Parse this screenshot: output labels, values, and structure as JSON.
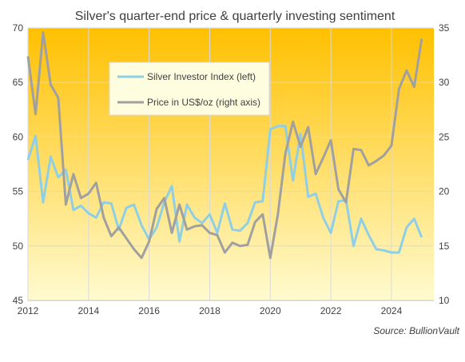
{
  "chart_data": {
    "type": "line",
    "title": "Silver's quarter-end price & quarterly  investing sentiment",
    "source": "Source:  BullionVault",
    "x_range": [
      2012,
      2025.4
    ],
    "x_ticks": [
      "2012",
      "2014",
      "2016",
      "2018",
      "2020",
      "2022",
      "2024"
    ],
    "y_left": {
      "range": [
        45,
        70
      ],
      "ticks": [
        "45",
        "50",
        "55",
        "60",
        "65",
        "70"
      ]
    },
    "y_right": {
      "range": [
        10,
        35
      ],
      "ticks": [
        "10",
        "15",
        "20",
        "25",
        "30",
        "35"
      ]
    },
    "grid": true,
    "background_gradient": [
      "#ffc000",
      "#fffbd0"
    ],
    "legend_position": "upper-left-center",
    "series": [
      {
        "name": "Silver Investor Index (left)",
        "axis": "left",
        "color": "#8fcfe6",
        "points": [
          [
            2012.0,
            57.9
          ],
          [
            2012.25,
            60.1
          ],
          [
            2012.5,
            54.0
          ],
          [
            2012.75,
            58.2
          ],
          [
            2013.0,
            56.3
          ],
          [
            2013.25,
            57.0
          ],
          [
            2013.5,
            53.3
          ],
          [
            2013.75,
            53.7
          ],
          [
            2014.0,
            53.0
          ],
          [
            2014.25,
            52.6
          ],
          [
            2014.5,
            54.0
          ],
          [
            2014.75,
            53.9
          ],
          [
            2015.0,
            51.5
          ],
          [
            2015.25,
            53.5
          ],
          [
            2015.5,
            53.8
          ],
          [
            2015.75,
            51.9
          ],
          [
            2016.0,
            50.6
          ],
          [
            2016.25,
            51.7
          ],
          [
            2016.5,
            54.0
          ],
          [
            2016.75,
            55.5
          ],
          [
            2017.0,
            50.4
          ],
          [
            2017.25,
            53.8
          ],
          [
            2017.5,
            52.6
          ],
          [
            2017.75,
            52.1
          ],
          [
            2018.0,
            52.9
          ],
          [
            2018.25,
            51.2
          ],
          [
            2018.5,
            53.9
          ],
          [
            2018.75,
            51.5
          ],
          [
            2019.0,
            51.4
          ],
          [
            2019.25,
            52.1
          ],
          [
            2019.5,
            54.0
          ],
          [
            2019.75,
            54.1
          ],
          [
            2020.0,
            60.7
          ],
          [
            2020.25,
            61.0
          ],
          [
            2020.5,
            61.0
          ],
          [
            2020.75,
            56.0
          ],
          [
            2021.0,
            60.3
          ],
          [
            2021.25,
            54.5
          ],
          [
            2021.5,
            54.8
          ],
          [
            2021.75,
            52.6
          ],
          [
            2022.0,
            51.2
          ],
          [
            2022.25,
            54.1
          ],
          [
            2022.5,
            54.2
          ],
          [
            2022.75,
            50.0
          ],
          [
            2023.0,
            52.5
          ],
          [
            2023.25,
            51.0
          ],
          [
            2023.5,
            49.7
          ],
          [
            2023.75,
            49.6
          ],
          [
            2024.0,
            49.4
          ],
          [
            2024.25,
            49.4
          ],
          [
            2024.5,
            51.7
          ],
          [
            2024.75,
            52.5
          ],
          [
            2025.0,
            50.8
          ]
        ]
      },
      {
        "name": "Price in US$/oz (right axis)",
        "axis": "right",
        "color": "#a0a0a0",
        "points": [
          [
            2012.0,
            32.4
          ],
          [
            2012.25,
            27.1
          ],
          [
            2012.5,
            34.6
          ],
          [
            2012.75,
            29.8
          ],
          [
            2013.0,
            28.6
          ],
          [
            2013.25,
            18.8
          ],
          [
            2013.5,
            21.6
          ],
          [
            2013.75,
            19.4
          ],
          [
            2014.0,
            19.8
          ],
          [
            2014.25,
            20.8
          ],
          [
            2014.5,
            17.6
          ],
          [
            2014.75,
            15.9
          ],
          [
            2015.0,
            16.7
          ],
          [
            2015.25,
            15.7
          ],
          [
            2015.5,
            14.7
          ],
          [
            2015.75,
            13.9
          ],
          [
            2016.0,
            15.4
          ],
          [
            2016.25,
            18.4
          ],
          [
            2016.5,
            19.4
          ],
          [
            2016.75,
            16.2
          ],
          [
            2017.0,
            18.8
          ],
          [
            2017.25,
            16.5
          ],
          [
            2017.5,
            16.8
          ],
          [
            2017.75,
            16.9
          ],
          [
            2018.0,
            16.2
          ],
          [
            2018.25,
            16.0
          ],
          [
            2018.5,
            14.4
          ],
          [
            2018.75,
            15.3
          ],
          [
            2019.0,
            15.0
          ],
          [
            2019.25,
            15.1
          ],
          [
            2019.5,
            17.2
          ],
          [
            2019.75,
            17.9
          ],
          [
            2020.0,
            13.9
          ],
          [
            2020.25,
            17.9
          ],
          [
            2020.5,
            23.5
          ],
          [
            2020.75,
            26.4
          ],
          [
            2021.0,
            24.1
          ],
          [
            2021.25,
            25.9
          ],
          [
            2021.5,
            21.6
          ],
          [
            2021.75,
            23.1
          ],
          [
            2022.0,
            24.7
          ],
          [
            2022.25,
            20.2
          ],
          [
            2022.5,
            19.0
          ],
          [
            2022.75,
            23.9
          ],
          [
            2023.0,
            23.8
          ],
          [
            2023.25,
            22.4
          ],
          [
            2023.5,
            22.8
          ],
          [
            2023.75,
            23.3
          ],
          [
            2024.0,
            24.2
          ],
          [
            2024.25,
            29.4
          ],
          [
            2024.5,
            31.1
          ],
          [
            2024.75,
            29.6
          ],
          [
            2025.0,
            34.0
          ]
        ]
      }
    ]
  }
}
